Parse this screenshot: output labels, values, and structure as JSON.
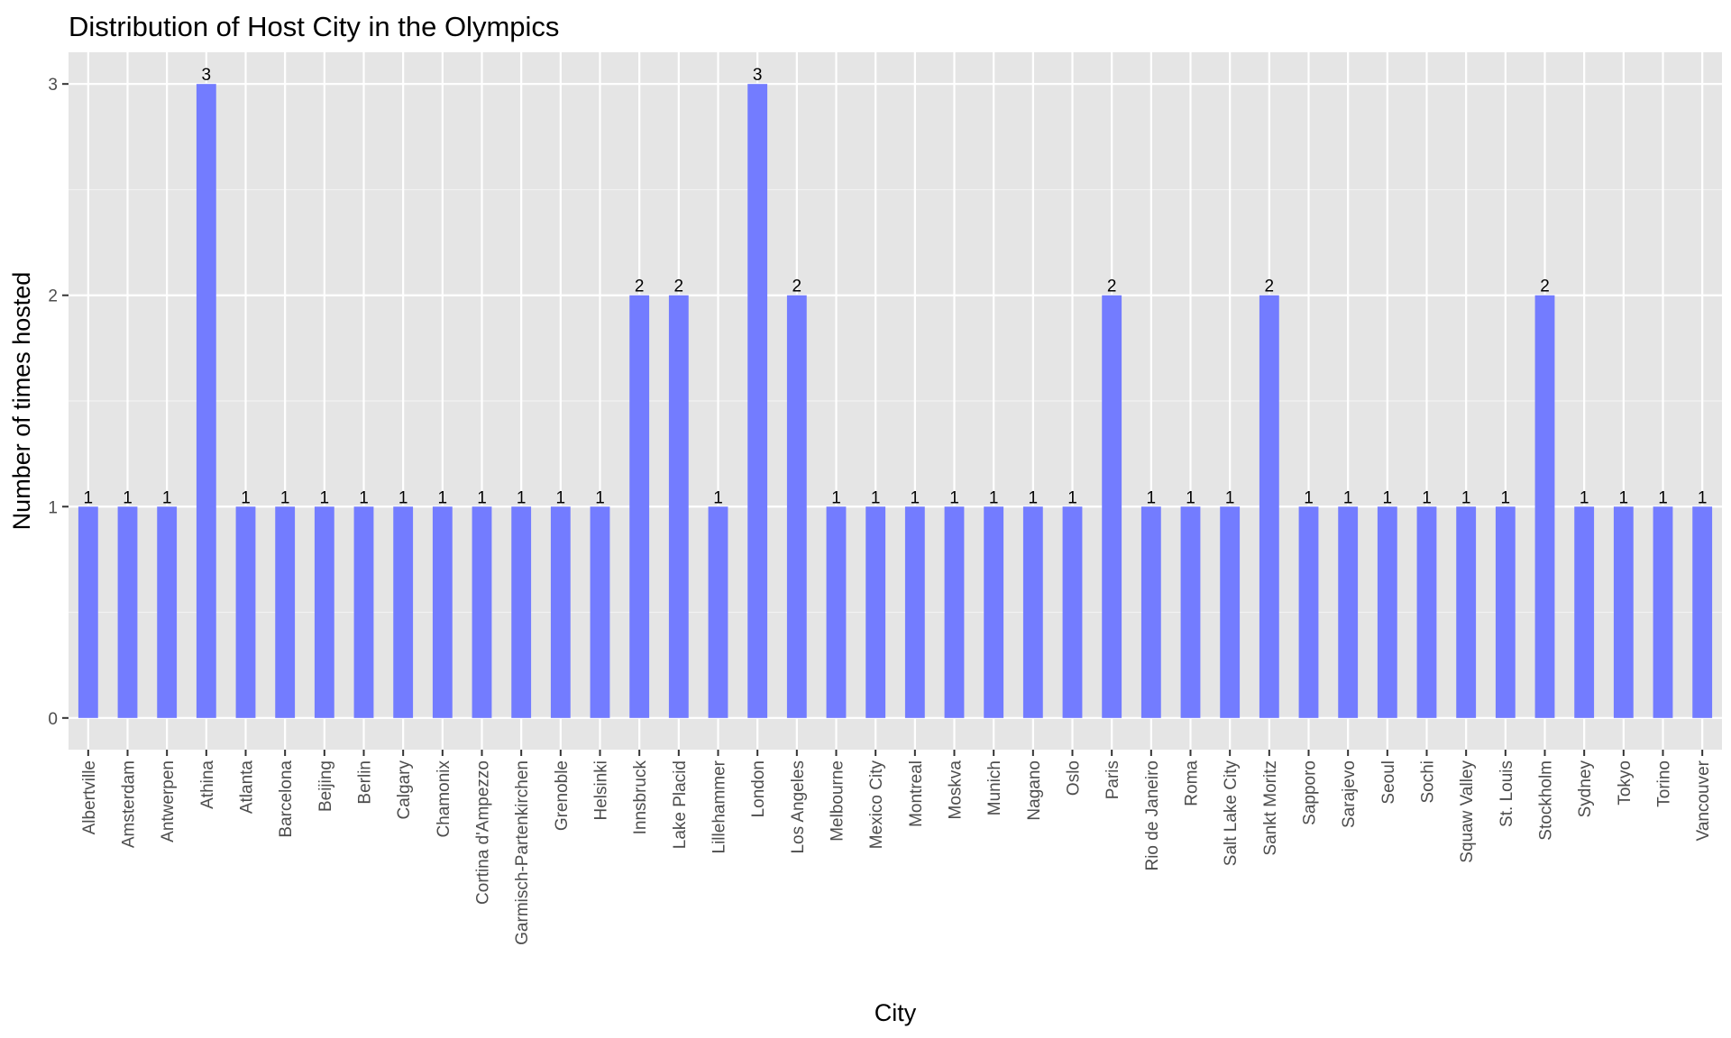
{
  "chart_data": {
    "type": "bar",
    "title": "Distribution of Host City in the Olympics",
    "xlabel": "City",
    "ylabel": "Number of times hosted",
    "categories": [
      "Albertville",
      "Amsterdam",
      "Antwerpen",
      "Athina",
      "Atlanta",
      "Barcelona",
      "Beijing",
      "Berlin",
      "Calgary",
      "Chamonix",
      "Cortina d'Ampezzo",
      "Garmisch-Partenkirchen",
      "Grenoble",
      "Helsinki",
      "Innsbruck",
      "Lake Placid",
      "Lillehammer",
      "London",
      "Los Angeles",
      "Melbourne",
      "Mexico City",
      "Montreal",
      "Moskva",
      "Munich",
      "Nagano",
      "Oslo",
      "Paris",
      "Rio de Janeiro",
      "Roma",
      "Salt Lake City",
      "Sankt Moritz",
      "Sapporo",
      "Sarajevo",
      "Seoul",
      "Sochi",
      "Squaw Valley",
      "St. Louis",
      "Stockholm",
      "Sydney",
      "Tokyo",
      "Torino",
      "Vancouver"
    ],
    "values": [
      1,
      1,
      1,
      3,
      1,
      1,
      1,
      1,
      1,
      1,
      1,
      1,
      1,
      1,
      2,
      2,
      1,
      3,
      2,
      1,
      1,
      1,
      1,
      1,
      1,
      1,
      2,
      1,
      1,
      1,
      2,
      1,
      1,
      1,
      1,
      1,
      1,
      2,
      1,
      1,
      1,
      1
    ],
    "data_labels": [
      "1",
      "1",
      "1",
      "3",
      "1",
      "1",
      "1",
      "1",
      "1",
      "1",
      "1",
      "1",
      "1",
      "1",
      "2",
      "2",
      "1",
      "3",
      "2",
      "1",
      "1",
      "1",
      "1",
      "1",
      "1",
      "1",
      "2",
      "1",
      "1",
      "1",
      "2",
      "1",
      "1",
      "1",
      "1",
      "1",
      "1",
      "2",
      "1",
      "1",
      "1",
      "1"
    ],
    "y_ticks": [
      0,
      1,
      2,
      3
    ],
    "y_tick_labels": [
      "0",
      "1",
      "2",
      "3"
    ],
    "ylim": [
      -0.15,
      3.15
    ],
    "grid": true,
    "legend": "none",
    "colors": {
      "bar": "#737cff",
      "panel": "#e5e5e5",
      "grid_major": "#ffffff",
      "grid_minor": "#f2f2f2",
      "tick": "#333333"
    }
  }
}
